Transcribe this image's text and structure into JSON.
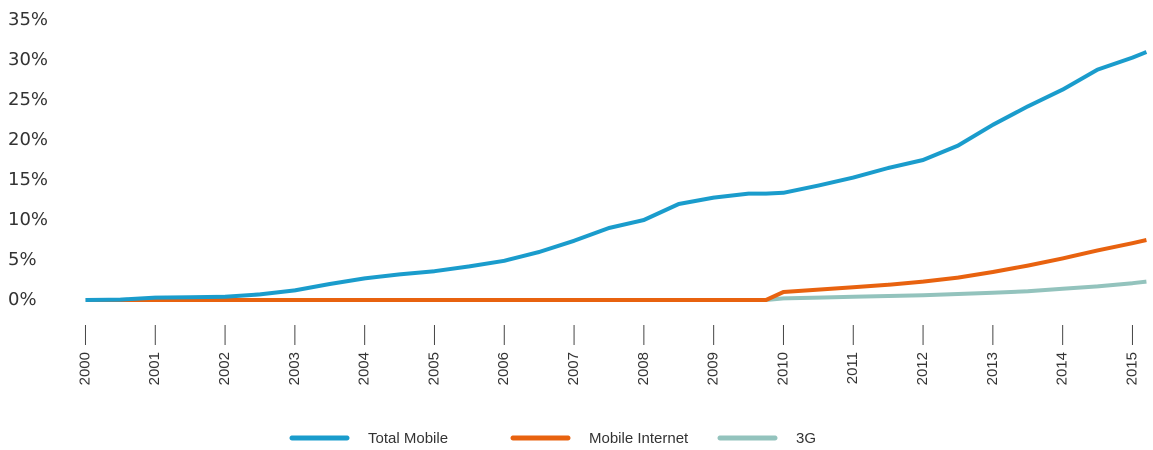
{
  "chart_data": {
    "type": "line",
    "x": [
      2000,
      2000.5,
      2001,
      2001.5,
      2002,
      2002.5,
      2003,
      2003.5,
      2004,
      2004.5,
      2005,
      2005.5,
      2006,
      2006.5,
      2007,
      2007.5,
      2008,
      2008.5,
      2009,
      2009.5,
      2009.75,
      2010,
      2010.5,
      2011,
      2011.5,
      2012,
      2012.5,
      2013,
      2013.5,
      2014,
      2014.5,
      2015,
      2015.2
    ],
    "series": [
      {
        "name": "Total Mobile",
        "color": "#1a9ccc",
        "values": [
          0,
          0.05,
          0.3,
          0.35,
          0.4,
          0.7,
          1.2,
          2.0,
          2.7,
          3.2,
          3.6,
          4.2,
          4.9,
          6.0,
          7.4,
          9.0,
          10.0,
          12.0,
          12.8,
          13.3,
          13.3,
          13.4,
          14.3,
          15.3,
          16.5,
          17.5,
          19.3,
          21.9,
          24.2,
          26.3,
          28.8,
          30.3,
          31.0
        ]
      },
      {
        "name": "Mobile Internet",
        "color": "#e8620f",
        "values": [
          0,
          0,
          0,
          0,
          0,
          0,
          0,
          0,
          0,
          0,
          0,
          0,
          0,
          0,
          0,
          0,
          0,
          0,
          0,
          0,
          0,
          1.0,
          1.3,
          1.6,
          1.9,
          2.3,
          2.8,
          3.5,
          4.3,
          5.2,
          6.2,
          7.1,
          7.5
        ]
      },
      {
        "name": "3G",
        "color": "#93c3bd",
        "values": [
          null,
          null,
          null,
          null,
          null,
          null,
          null,
          null,
          null,
          null,
          null,
          null,
          null,
          null,
          null,
          null,
          null,
          null,
          null,
          null,
          0,
          0.2,
          0.3,
          0.4,
          0.5,
          0.6,
          0.75,
          0.9,
          1.1,
          1.4,
          1.7,
          2.1,
          2.3
        ]
      }
    ],
    "xlim": [
      1999.85,
      2015.28
    ],
    "xticks": [
      2000,
      2001,
      2002,
      2003,
      2004,
      2005,
      2006,
      2007,
      2008,
      2009,
      2010,
      2011,
      2012,
      2013,
      2014,
      2015
    ],
    "ylim": [
      0,
      35
    ],
    "yticks": [
      {
        "value": 0,
        "label": "0%"
      },
      {
        "value": 5,
        "label": "5%"
      },
      {
        "value": 10,
        "label": "10%"
      },
      {
        "value": 15,
        "label": "15%"
      },
      {
        "value": 20,
        "label": "20%"
      },
      {
        "value": 25,
        "label": "25%"
      },
      {
        "value": 30,
        "label": "30%"
      },
      {
        "value": 35,
        "label": "35%"
      }
    ],
    "legend": "bottom"
  }
}
